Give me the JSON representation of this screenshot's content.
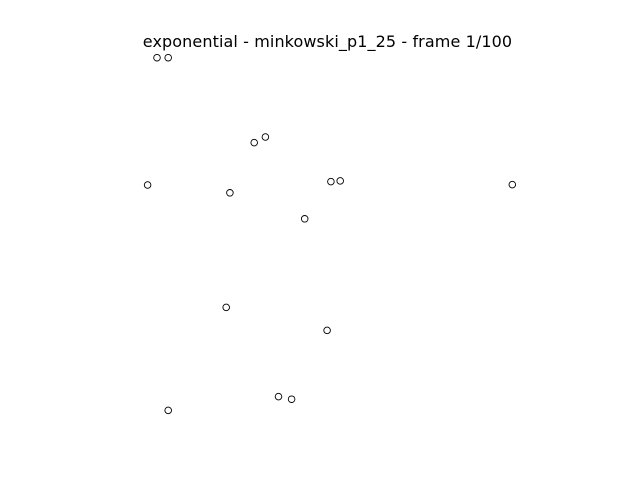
{
  "title": "exponential - minkowski_p1_25 - frame 1/100",
  "colors": {
    "background": "#ffffff",
    "marker_stroke": "#000000",
    "text": "#000000"
  },
  "points": [
    {
      "x": 0.04,
      "y": 0.998
    },
    {
      "x": 0.07,
      "y": 0.998
    },
    {
      "x": 0.3,
      "y": 0.77
    },
    {
      "x": 0.33,
      "y": 0.785
    },
    {
      "x": 0.015,
      "y": 0.656
    },
    {
      "x": 0.235,
      "y": 0.635
    },
    {
      "x": 0.505,
      "y": 0.665
    },
    {
      "x": 0.53,
      "y": 0.667
    },
    {
      "x": 0.99,
      "y": 0.657
    },
    {
      "x": 0.435,
      "y": 0.565
    },
    {
      "x": 0.225,
      "y": 0.327
    },
    {
      "x": 0.495,
      "y": 0.265
    },
    {
      "x": 0.365,
      "y": 0.087
    },
    {
      "x": 0.4,
      "y": 0.08
    },
    {
      "x": 0.07,
      "y": 0.05
    }
  ]
}
